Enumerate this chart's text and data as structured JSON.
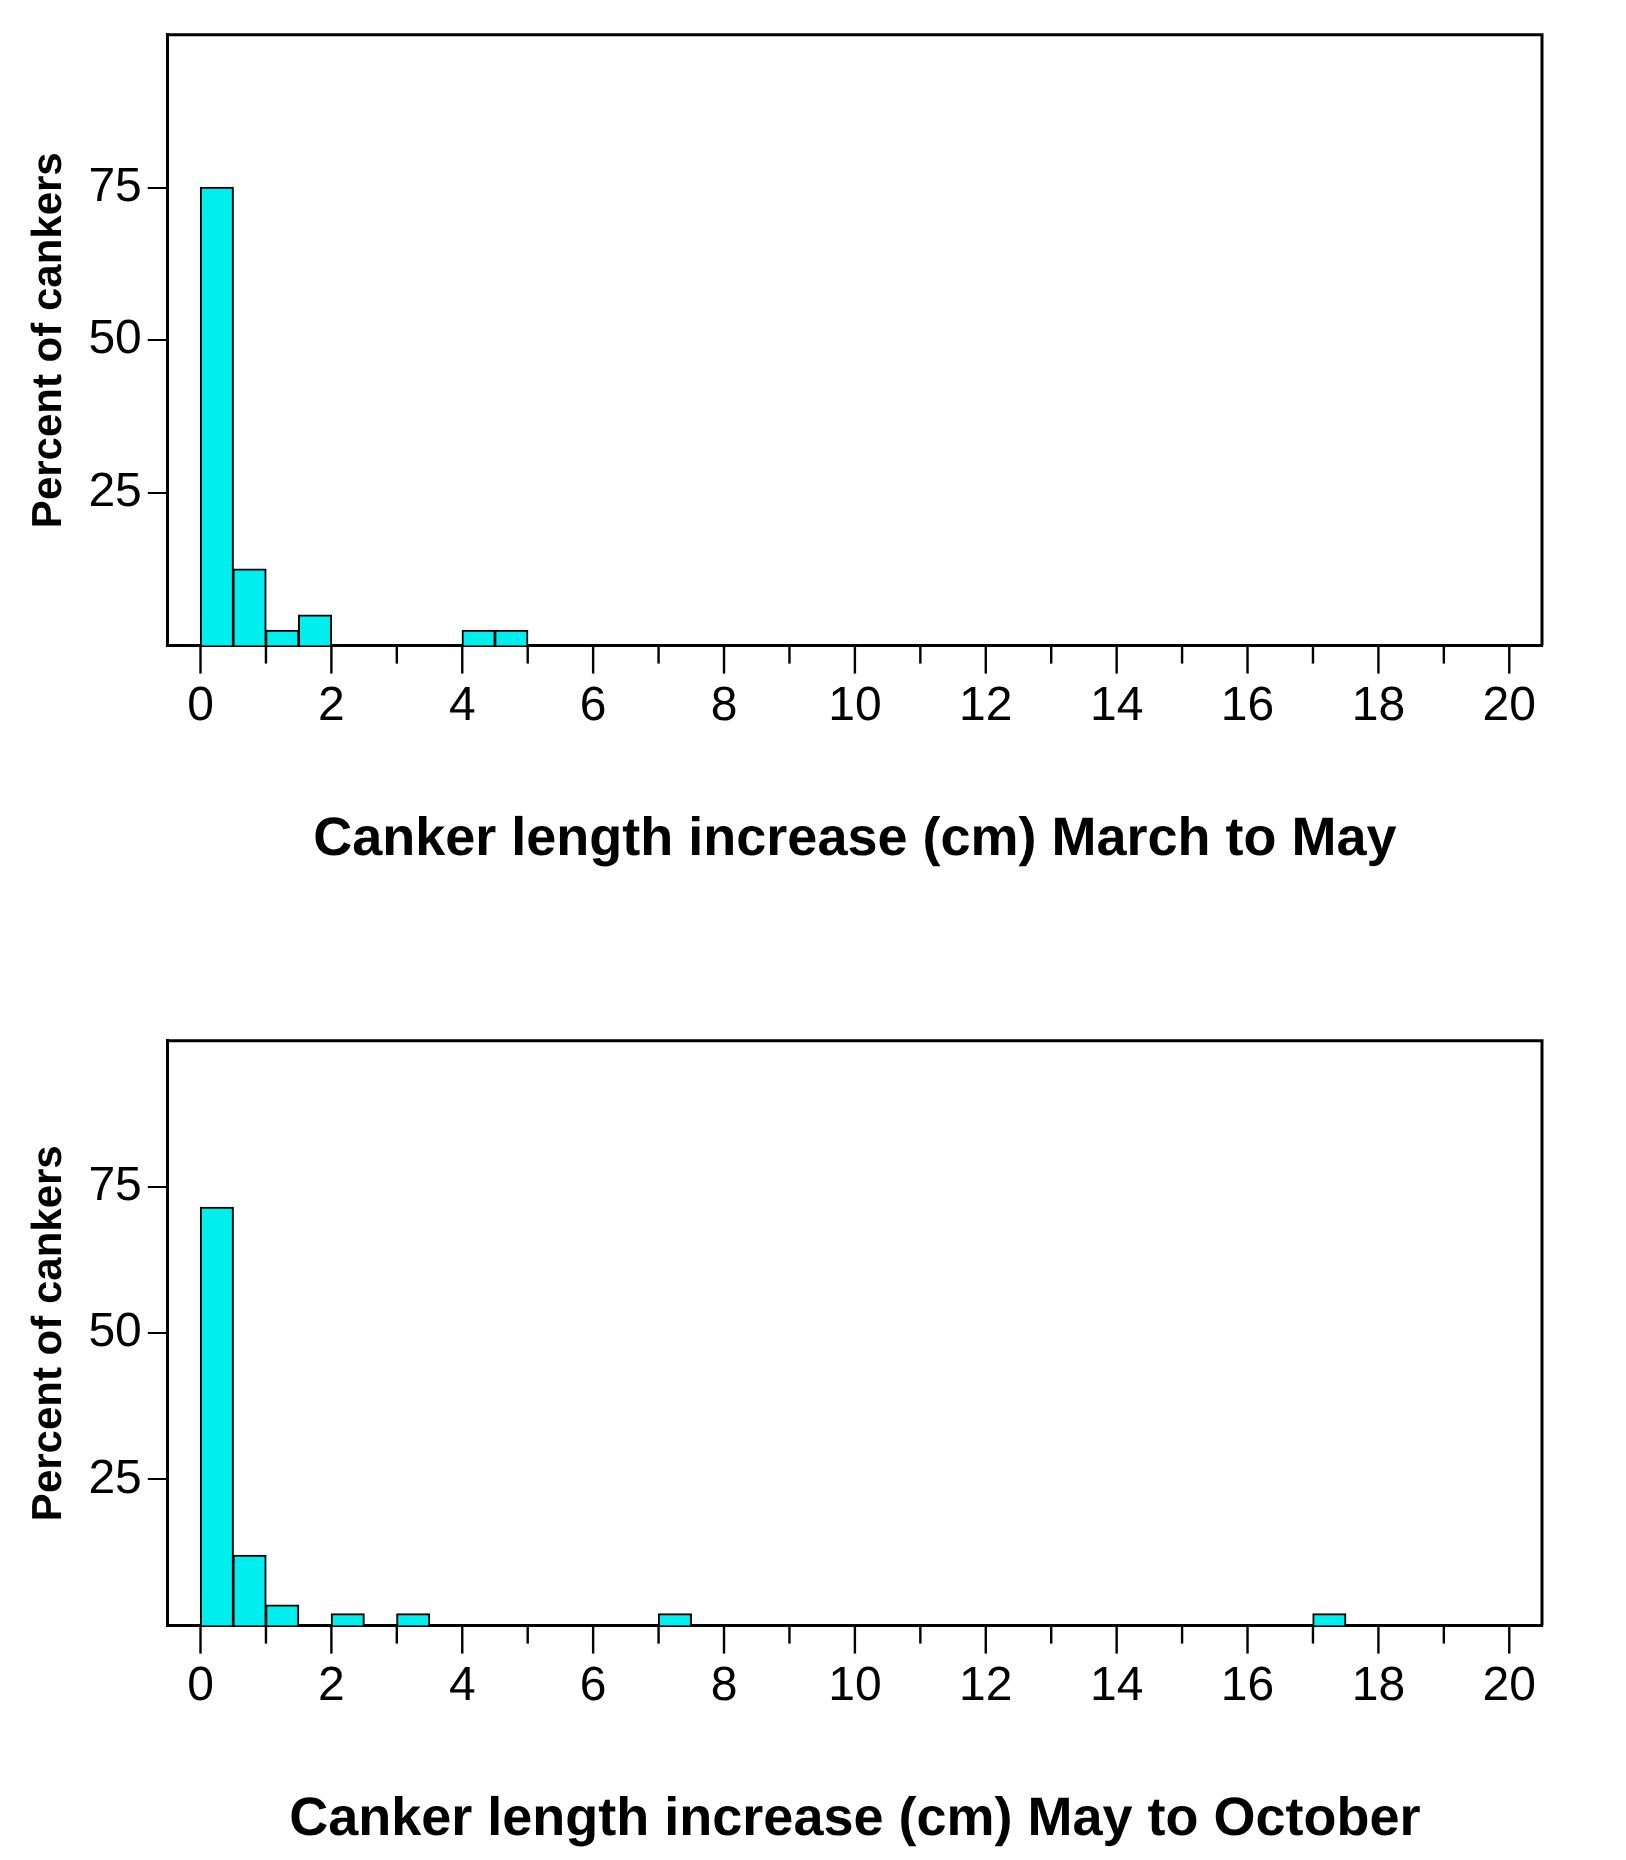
{
  "chart_data": [
    {
      "type": "histogram",
      "xlabel": "Canker length increase (cm) March to May",
      "ylabel": "Percent of cankers",
      "bins": [
        0,
        0.5,
        1,
        1.5,
        2,
        2.5,
        3,
        3.5,
        4,
        4.5,
        5,
        5.5,
        6,
        6.5,
        7,
        7.5,
        8,
        8.5,
        9,
        9.5,
        10,
        10.5,
        11,
        11.5,
        12,
        12.5,
        13,
        13.5,
        14,
        14.5,
        15,
        15.5,
        16,
        16.5,
        17,
        17.5,
        18,
        18.5,
        19,
        19.5,
        20
      ],
      "values": [
        75,
        12.5,
        2.5,
        5,
        0,
        0,
        0,
        0,
        2.5,
        2.5,
        0,
        0,
        0,
        0,
        0,
        0,
        0,
        0,
        0,
        0,
        0,
        0,
        0,
        0,
        0,
        0,
        0,
        0,
        0,
        0,
        0,
        0,
        0,
        0,
        0,
        0,
        0,
        0,
        0,
        0
      ],
      "color": "#00eeee",
      "xlim": [
        -0.5,
        20.5
      ],
      "ylim": [
        0,
        100
      ],
      "xticks": [
        0,
        {
          "value": 1,
          "label": null
        },
        2,
        {
          "value": 3,
          "label": null
        },
        4,
        {
          "value": 5,
          "label": null
        },
        6,
        {
          "value": 7,
          "label": null
        },
        8,
        {
          "value": 9,
          "label": null
        },
        10,
        {
          "value": 11,
          "label": null
        },
        12,
        {
          "value": 13,
          "label": null
        },
        14,
        {
          "value": 15,
          "label": null
        },
        16,
        {
          "value": 17,
          "label": null
        },
        18,
        {
          "value": 19,
          "label": null
        },
        20
      ],
      "yticks": [
        25,
        50,
        75
      ],
      "grid": false
    },
    {
      "type": "histogram",
      "xlabel": "Canker length increase (cm) May to October",
      "ylabel": "Percent of cankers",
      "bins": [
        0,
        0.5,
        1,
        1.5,
        2,
        2.5,
        3,
        3.5,
        4,
        4.5,
        5,
        5.5,
        6,
        6.5,
        7,
        7.5,
        8,
        8.5,
        9,
        9.5,
        10,
        10.5,
        11,
        11.5,
        12,
        12.5,
        13,
        13.5,
        14,
        14.5,
        15,
        15.5,
        16,
        16.5,
        17,
        17.5,
        18,
        18.5,
        19,
        19.5,
        20
      ],
      "values": [
        71.5,
        12,
        3.5,
        0,
        2,
        0,
        2,
        0,
        0,
        0,
        0,
        0,
        0,
        0,
        2,
        0,
        0,
        0,
        0,
        0,
        0,
        0,
        0,
        0,
        0,
        0,
        0,
        0,
        0,
        0,
        0,
        0,
        0,
        0,
        2,
        0,
        0,
        0,
        0,
        0
      ],
      "color": "#00eeee",
      "xlim": [
        -0.5,
        20.5
      ],
      "ylim": [
        0,
        100
      ],
      "xticks": [
        0,
        {
          "value": 1,
          "label": null
        },
        2,
        {
          "value": 3,
          "label": null
        },
        4,
        {
          "value": 5,
          "label": null
        },
        6,
        {
          "value": 7,
          "label": null
        },
        8,
        {
          "value": 9,
          "label": null
        },
        10,
        {
          "value": 11,
          "label": null
        },
        12,
        {
          "value": 13,
          "label": null
        },
        14,
        {
          "value": 15,
          "label": null
        },
        16,
        {
          "value": 17,
          "label": null
        },
        18,
        {
          "value": 19,
          "label": null
        },
        20
      ],
      "yticks": [
        25,
        50,
        75
      ],
      "grid": false
    }
  ]
}
